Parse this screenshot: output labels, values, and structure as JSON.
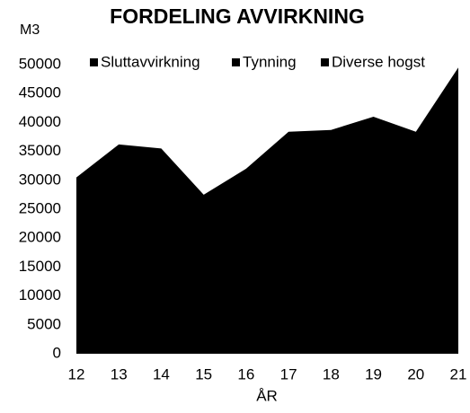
{
  "chart_data": {
    "type": "area",
    "title": "FORDELING AVVIRKNING",
    "y_label": "M3",
    "x_label": "ÅR",
    "categories": [
      "12",
      "13",
      "14",
      "15",
      "16",
      "17",
      "18",
      "19",
      "20",
      "21"
    ],
    "values": [
      30500,
      36200,
      35500,
      27500,
      32000,
      38400,
      38700,
      41000,
      38400,
      49500
    ],
    "color": "#000000",
    "legend": [
      "Sluttavvirkning",
      "Tynning",
      "Diverse hogst"
    ],
    "ylim": [
      0,
      50000
    ],
    "yticks": [
      0,
      5000,
      10000,
      15000,
      20000,
      25000,
      30000,
      35000,
      40000,
      45000,
      50000
    ],
    "grid": false
  }
}
